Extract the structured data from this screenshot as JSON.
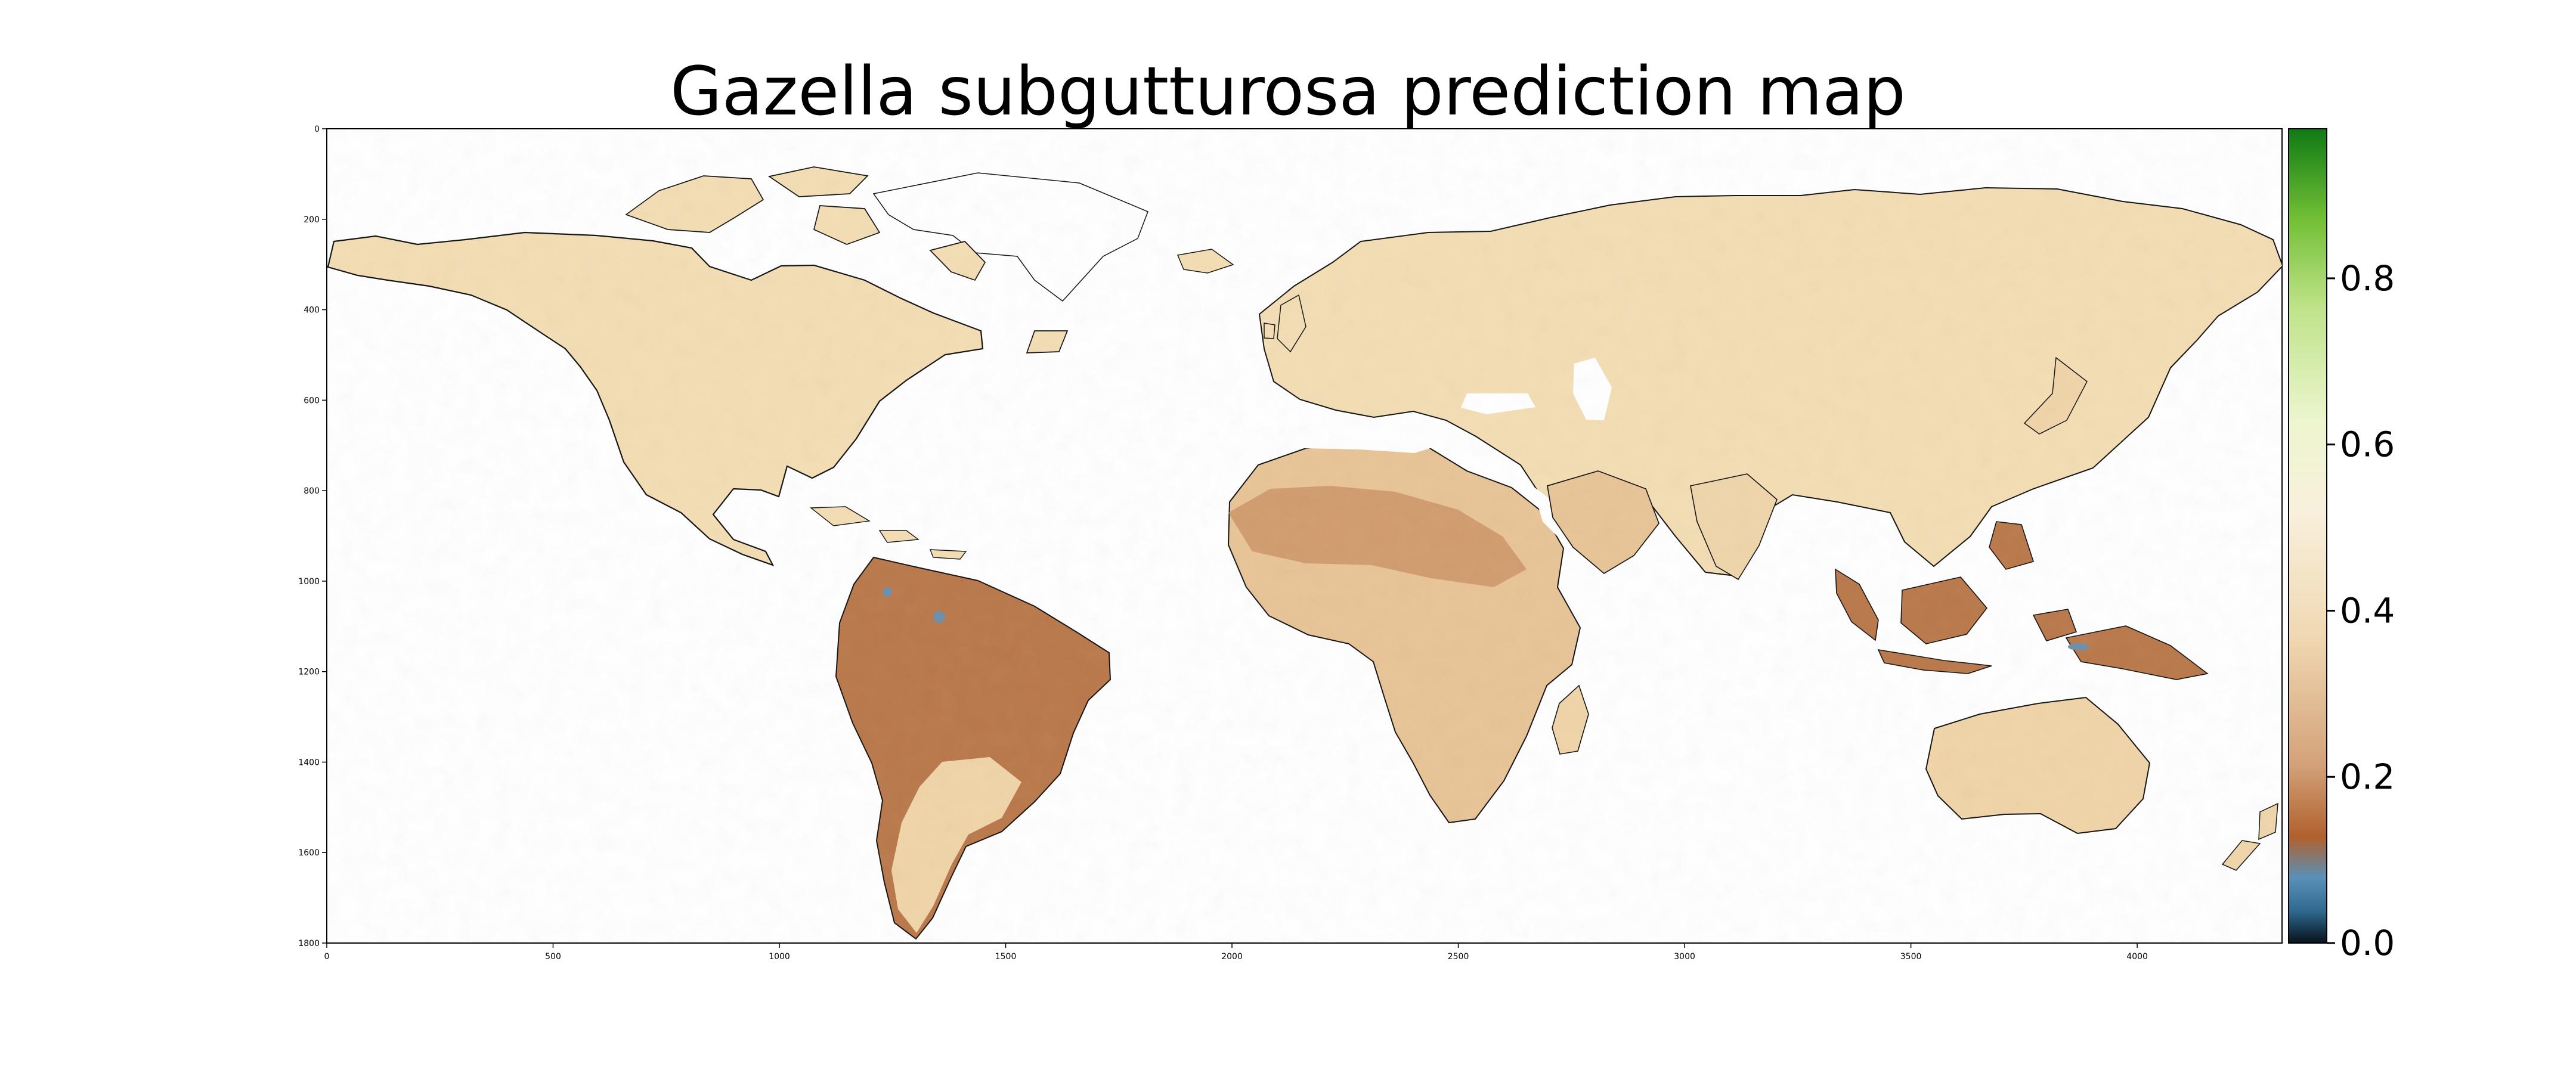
{
  "figure": {
    "title": "Gazella subgutturosa prediction map"
  },
  "map": {
    "x_ticks": [
      "0",
      "500",
      "1000",
      "1500",
      "2000",
      "2500",
      "3000",
      "3500",
      "4000"
    ],
    "y_ticks": [
      "0",
      "200",
      "400",
      "600",
      "800",
      "1000",
      "1200",
      "1400",
      "1600",
      "1800"
    ],
    "x_range": [
      0,
      4320
    ],
    "y_range": [
      0,
      1800
    ],
    "land_color": "#f3ddb4",
    "dry_color": "#d9a77a",
    "wet_color": "#b9784a",
    "very_low_color": "#6f8faa"
  },
  "colorbar": {
    "ticks": [
      "0.0",
      "0.2",
      "0.4",
      "0.6",
      "0.8"
    ],
    "range": [
      0.0,
      0.98
    ],
    "colors": [
      "#07121b",
      "#2f6a91",
      "#5a90b9",
      "#b0612d",
      "#d4a27a",
      "#f0d9b3",
      "#f8f0dc",
      "#edf6ce",
      "#bfe38a",
      "#72bf35",
      "#0f7a15"
    ]
  }
}
